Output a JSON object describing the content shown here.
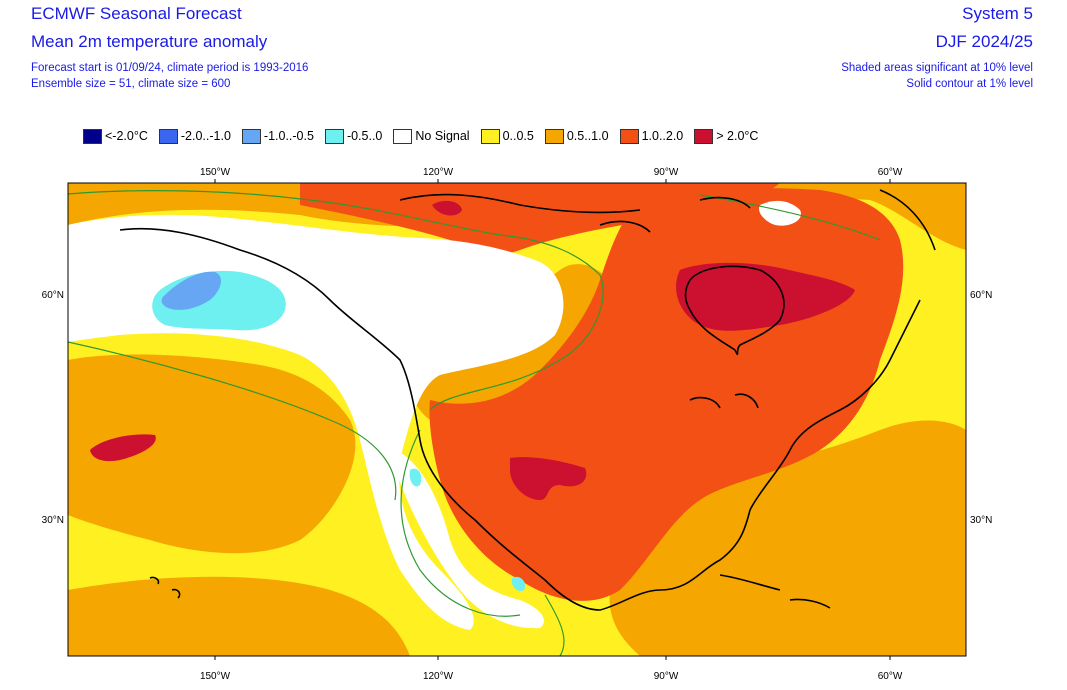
{
  "header": {
    "title_left": "ECMWF Seasonal Forecast",
    "subtitle_left": "Mean 2m temperature anomaly",
    "info_line1": "Forecast start is 01/09/24, climate period is 1993-2016",
    "info_line2": "Ensemble size = 51, climate size = 600",
    "title_right": "System 5",
    "subtitle_right": "DJF 2024/25",
    "note_line1": "Shaded areas significant at 10% level",
    "note_line2": "Solid contour at 1% level"
  },
  "legend": [
    {
      "label": "<-2.0°C",
      "color": "#00008b"
    },
    {
      "label": "-2.0..-1.0",
      "color": "#3a66f0"
    },
    {
      "label": "-1.0..-0.5",
      "color": "#66a6f2"
    },
    {
      "label": "-0.5..0",
      "color": "#6ff0f0"
    },
    {
      "label": "No Signal",
      "color": "#ffffff"
    },
    {
      "label": "0..0.5",
      "color": "#fff022"
    },
    {
      "label": "0.5..1.0",
      "color": "#f5a600"
    },
    {
      "label": "1.0..2.0",
      "color": "#f25015"
    },
    {
      "label": "> 2.0°C",
      "color": "#cc1030"
    }
  ],
  "axes": {
    "lon_labels": [
      "150°W",
      "120°W",
      "90°W",
      "60°W"
    ],
    "lat_labels": [
      "60°N",
      "30°N"
    ]
  },
  "colors": {
    "text": "#1a1ae6",
    "contour": "#2e9a2e",
    "coastline": "#000000"
  }
}
